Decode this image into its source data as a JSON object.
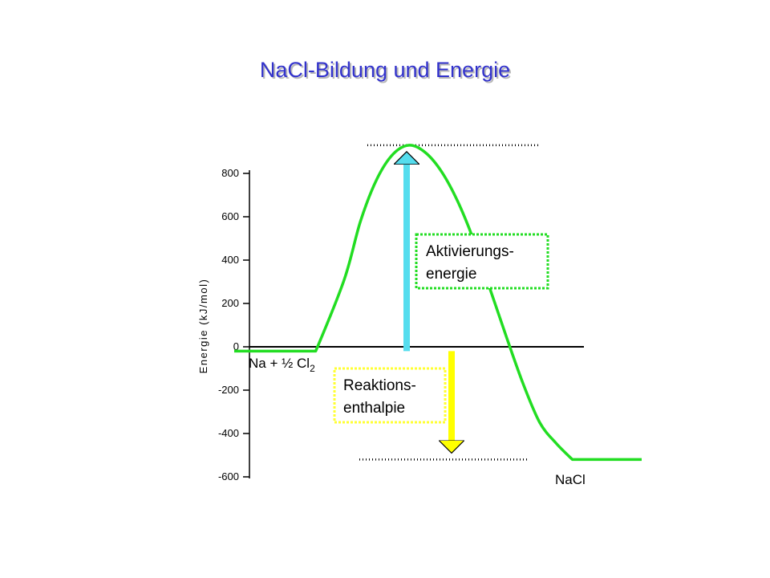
{
  "slide": {
    "title": "NaCl-Bildung und Energie"
  },
  "chart_data": {
    "type": "line",
    "title": "",
    "ylabel": "Energie (kJ/mol)",
    "xlabel": "",
    "ylim": [
      -600,
      800
    ],
    "yticks": [
      800,
      600,
      400,
      200,
      0,
      -200,
      -400,
      -600
    ],
    "grid": false,
    "series": [
      {
        "color": "#22dd22",
        "x": [
          0,
          20,
          27,
          31,
          35,
          39,
          43,
          47,
          51,
          55,
          59,
          63,
          67,
          71,
          75,
          79,
          83,
          87,
          100
        ],
        "y": [
          -20,
          -20,
          310,
          580,
          773,
          889,
          930,
          895,
          805,
          665,
          480,
          255,
          35,
          -175,
          -350,
          -445,
          -520,
          -520,
          -520
        ]
      }
    ],
    "annotations": {
      "reactants": {
        "prefix": "Na + ½ Cl",
        "subscript": "2"
      },
      "product": "NaCl",
      "activation_box": {
        "line1": "Aktivierungs-",
        "line2": "energie",
        "border_color": "#22dd22"
      },
      "enthalpy_box": {
        "line1": "Reaktions-",
        "line2": "enthalpie",
        "border_color": "#ffff33"
      },
      "activation_arrow": {
        "from": -20,
        "to": 930,
        "color": "#55ddee"
      },
      "enthalpy_arrow": {
        "from": -20,
        "to": -520,
        "color": "#ffff00"
      },
      "peak_reference_line": 930,
      "product_reference_line": -520
    }
  }
}
